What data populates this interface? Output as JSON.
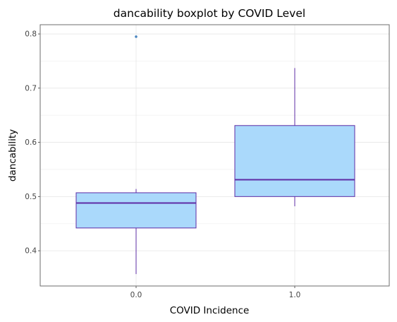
{
  "chart_data": {
    "type": "boxplot",
    "title": "dancability boxplot by COVID Level",
    "xlabel": "COVID Incidence",
    "ylabel": "dancability",
    "categories": [
      "0.0",
      "1.0"
    ],
    "ylim": [
      0.335,
      0.817
    ],
    "yticks": [
      0.4,
      0.5,
      0.6,
      0.7,
      0.8
    ],
    "ytick_labels": [
      "0.4",
      "0.5",
      "0.6",
      "0.7",
      "0.8"
    ],
    "grid": true,
    "legend": "none",
    "boxes": [
      {
        "category": "0.0",
        "whisker_low": 0.357,
        "q1": 0.442,
        "median": 0.488,
        "q3": 0.507,
        "whisker_high": 0.514,
        "outliers": [
          0.795
        ]
      },
      {
        "category": "1.0",
        "whisker_low": 0.482,
        "q1": 0.5,
        "median": 0.531,
        "q3": 0.631,
        "whisker_high": 0.737,
        "outliers": []
      }
    ],
    "colors": {
      "box_fill": "#aad9fb",
      "box_stroke": "#5e2ca5",
      "outlier": "#4a86c0",
      "panel_border": "#6e6e6e",
      "grid": "#e6e6e6"
    }
  }
}
